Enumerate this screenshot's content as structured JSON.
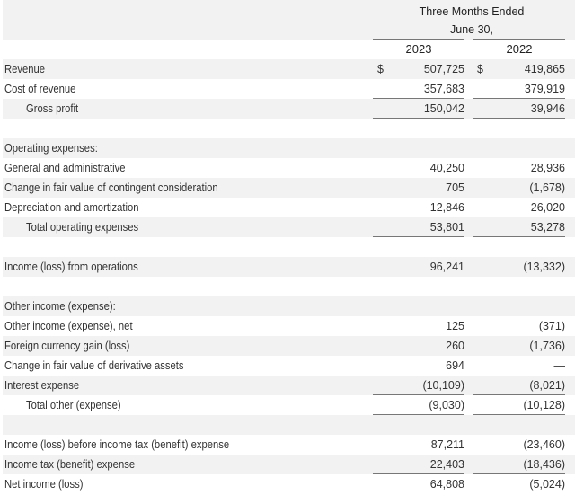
{
  "header": {
    "period_line1": "Three Months Ended",
    "period_line2": "June 30,",
    "col1": "2023",
    "col2": "2022"
  },
  "currency_symbol": "$",
  "rows": [
    {
      "label": "Revenue",
      "v1": "507,725",
      "v2": "419,865"
    },
    {
      "label": "Cost of revenue",
      "v1": "357,683",
      "v2": "379,919"
    },
    {
      "label": "Gross profit",
      "v1": "150,042",
      "v2": "39,946"
    },
    {
      "label": "",
      "v1": "",
      "v2": ""
    },
    {
      "label": "Operating expenses:",
      "v1": "",
      "v2": ""
    },
    {
      "label": "General and administrative",
      "v1": "40,250",
      "v2": "28,936"
    },
    {
      "label": "Change in fair value of contingent consideration",
      "v1": "705",
      "v2": "(1,678)"
    },
    {
      "label": "Depreciation and amortization",
      "v1": "12,846",
      "v2": "26,020"
    },
    {
      "label": "Total operating expenses",
      "v1": "53,801",
      "v2": "53,278"
    },
    {
      "label": "",
      "v1": "",
      "v2": ""
    },
    {
      "label": "Income (loss) from operations",
      "v1": "96,241",
      "v2": "(13,332)"
    },
    {
      "label": "",
      "v1": "",
      "v2": ""
    },
    {
      "label": "Other income (expense):",
      "v1": "",
      "v2": ""
    },
    {
      "label": "Other income (expense), net",
      "v1": "125",
      "v2": "(371)"
    },
    {
      "label": "Foreign currency gain (loss)",
      "v1": "260",
      "v2": "(1,736)"
    },
    {
      "label": "Change in fair value of derivative assets",
      "v1": "694",
      "v2": "—"
    },
    {
      "label": "Interest expense",
      "v1": "(10,109)",
      "v2": "(8,021)"
    },
    {
      "label": "Total other (expense)",
      "v1": "(9,030)",
      "v2": "(10,128)"
    },
    {
      "label": "",
      "v1": "",
      "v2": ""
    },
    {
      "label": "Income (loss) before income tax (benefit) expense",
      "v1": "87,211",
      "v2": "(23,460)"
    },
    {
      "label": "Income tax (benefit) expense",
      "v1": "22,403",
      "v2": "(18,436)"
    },
    {
      "label": "Net income (loss)",
      "v1": "64,808",
      "v2": "(5,024)"
    }
  ]
}
